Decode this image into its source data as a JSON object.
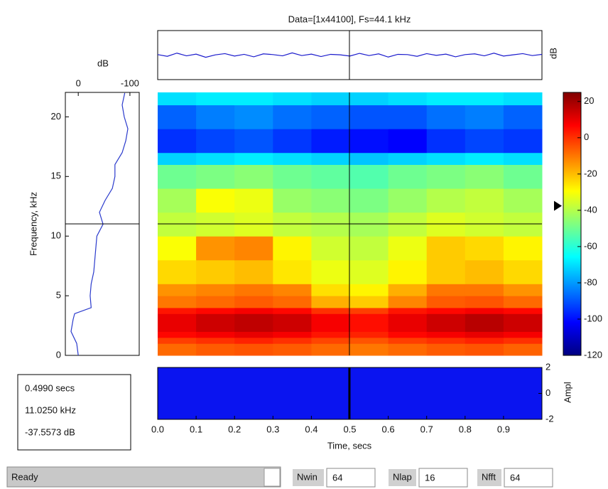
{
  "title": "Data=[1x44100], Fs=44.1 kHz",
  "signal": {
    "ylabel": "dB",
    "ylim": [
      -1,
      1
    ],
    "time": [
      0,
      0.025,
      0.05,
      0.075,
      0.1,
      0.125,
      0.15,
      0.175,
      0.2,
      0.225,
      0.25,
      0.275,
      0.3,
      0.325,
      0.35,
      0.375,
      0.4,
      0.425,
      0.45,
      0.475,
      0.5,
      0.525,
      0.55,
      0.575,
      0.6,
      0.625,
      0.65,
      0.675,
      0.7,
      0.725,
      0.75,
      0.775,
      0.8,
      0.825,
      0.85,
      0.875,
      0.9,
      0.925,
      0.95,
      0.975,
      1
    ],
    "values": [
      0.02,
      -0.05,
      0.08,
      -0.03,
      0.04,
      -0.09,
      0.01,
      0.06,
      -0.04,
      0.03,
      -0.07,
      0.05,
      0.02,
      -0.03,
      0.09,
      -0.02,
      0.04,
      -0.06,
      0.03,
      0.01,
      -0.04,
      0.07,
      -0.02,
      0.05,
      -0.08,
      0.03,
      0.02,
      -0.05,
      0.06,
      -0.01,
      0.04,
      -0.07,
      0.02,
      0.05,
      -0.03,
      0.08,
      -0.04,
      0.01,
      0.06,
      -0.02,
      0.03
    ]
  },
  "spectrogram": {
    "xlim": [
      0,
      1
    ],
    "ylim": [
      0,
      22.05
    ],
    "xlabel": "Time, secs",
    "xticks": [
      {
        "value": 0,
        "label": "0.0"
      },
      0.1,
      0.2,
      0.3,
      0.4,
      0.5,
      0.6,
      0.7,
      0.8,
      0.9
    ],
    "time_edges": [
      0,
      0.1,
      0.2,
      0.3,
      0.4,
      0.5,
      0.6,
      0.7,
      0.8,
      0.9,
      1
    ],
    "freq_edges": [
      0,
      1,
      1.5,
      2,
      3.5,
      4,
      5,
      6,
      8,
      10,
      12,
      14,
      16,
      17,
      19,
      21,
      22.05
    ],
    "values": [
      [
        -8,
        -6,
        -5,
        -6,
        -8,
        -10,
        -8,
        -6,
        -5,
        -7
      ],
      [
        -2,
        0,
        2,
        0,
        -3,
        -5,
        -2,
        0,
        2,
        0
      ],
      [
        6,
        8,
        10,
        8,
        4,
        2,
        6,
        8,
        10,
        8
      ],
      [
        10,
        14,
        16,
        14,
        8,
        5,
        10,
        14,
        17,
        14
      ],
      [
        4,
        6,
        8,
        6,
        0,
        -2,
        4,
        6,
        8,
        6
      ],
      [
        -10,
        -8,
        -6,
        -8,
        -18,
        -22,
        -12,
        -6,
        -5,
        -8
      ],
      [
        -14,
        -12,
        -10,
        -12,
        -25,
        -28,
        -18,
        -10,
        -10,
        -14
      ],
      [
        -24,
        -22,
        -20,
        -26,
        -32,
        -34,
        -28,
        -22,
        -20,
        -24
      ],
      [
        -30,
        -14,
        -12,
        -28,
        -36,
        -38,
        -32,
        -22,
        -24,
        -28
      ],
      [
        -38,
        -36,
        -34,
        -38,
        -40,
        -42,
        -38,
        -34,
        -36,
        -38
      ],
      [
        -42,
        -30,
        -32,
        -44,
        -46,
        -48,
        -44,
        -40,
        -38,
        -42
      ],
      [
        -50,
        -48,
        -46,
        -50,
        -52,
        -54,
        -50,
        -48,
        -46,
        -50
      ],
      [
        -72,
        -70,
        -68,
        -70,
        -72,
        -74,
        -72,
        -70,
        -68,
        -70
      ],
      [
        -95,
        -92,
        -90,
        -94,
        -98,
        -100,
        -102,
        -95,
        -92,
        -94
      ],
      [
        -88,
        -84,
        -82,
        -86,
        -88,
        -90,
        -90,
        -86,
        -84,
        -88
      ],
      [
        -70,
        -68,
        -68,
        -70,
        -72,
        -72,
        -70,
        -68,
        -68,
        -70
      ]
    ]
  },
  "slice": {
    "xlabel": "dB",
    "ylabel": "Frequency, kHz",
    "xlim": [
      25,
      -118
    ],
    "xticks": [
      0,
      -100
    ],
    "yticks": [
      0,
      5,
      10,
      15,
      20
    ],
    "freq": [
      0,
      1,
      2,
      3,
      3.5,
      4,
      5,
      6,
      7,
      8,
      9,
      10,
      11,
      12,
      13,
      14,
      15,
      16,
      17,
      18,
      19,
      20,
      21,
      22
    ],
    "db": [
      0,
      3,
      14,
      10,
      7,
      -25,
      -23,
      -25,
      -30,
      -32,
      -34,
      -36,
      -48,
      -41,
      -52,
      -66,
      -71,
      -71,
      -85,
      -92,
      -96,
      -89,
      -85,
      -90
    ]
  },
  "colorbar": {
    "ylim": [
      -120,
      25
    ],
    "yticks": [
      20,
      0,
      -20,
      -40,
      -60,
      -80,
      -100,
      -120
    ]
  },
  "amplitude": {
    "ylabel": "Ampl",
    "ylim": [
      -2,
      2
    ],
    "yticks": [
      2,
      0,
      -2
    ]
  },
  "cursor": {
    "time": {
      "value": 0.499,
      "label": "0.4990 secs"
    },
    "freq": {
      "value": 11.025,
      "label": "11.0250 kHz"
    },
    "db": {
      "value": -37.5573,
      "label": "-37.5573 dB"
    }
  },
  "status": {
    "text": "Ready",
    "fields": [
      {
        "label": "Nwin",
        "value": "64"
      },
      {
        "label": "Nlap",
        "value": "16"
      },
      {
        "label": "Nfft",
        "value": "64"
      }
    ]
  }
}
